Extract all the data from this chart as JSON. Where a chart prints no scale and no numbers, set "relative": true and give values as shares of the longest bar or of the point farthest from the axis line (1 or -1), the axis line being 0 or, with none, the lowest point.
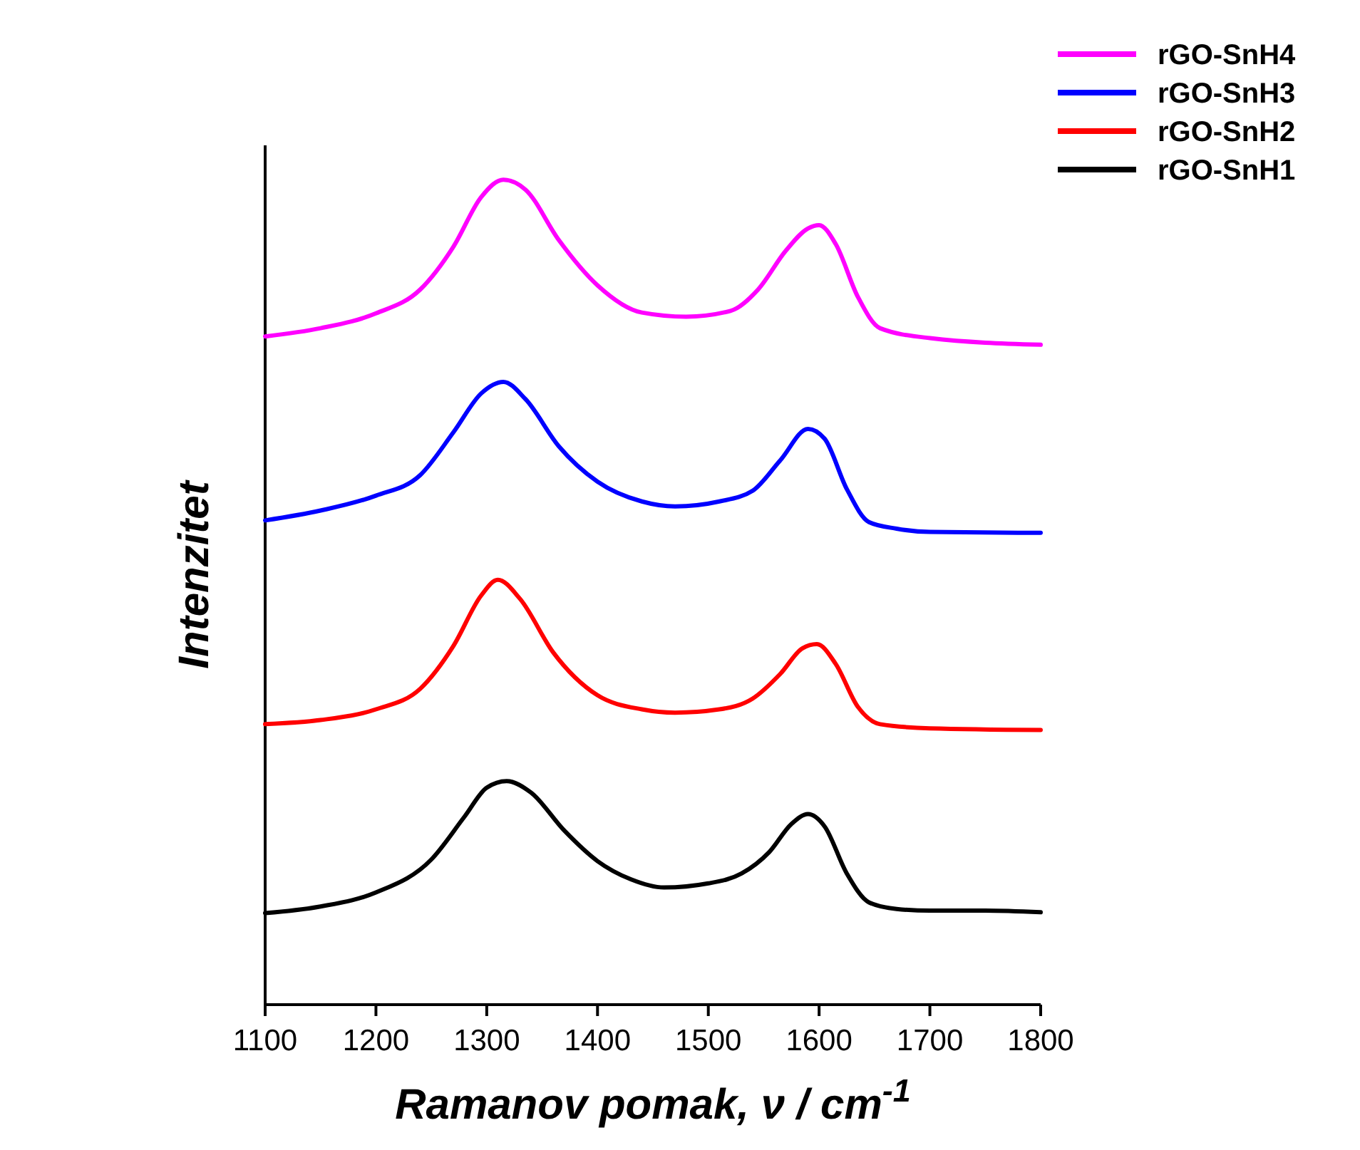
{
  "chart_data": {
    "type": "line",
    "relative": true,
    "xlabel": "Ramanov pomak, ν / cm$^{-1}$",
    "ylabel": "Intenzitet",
    "xlim": [
      1100,
      1800
    ],
    "xticks": [
      1100,
      1200,
      1300,
      1400,
      1500,
      1600,
      1700,
      1800
    ],
    "legend": "top right",
    "grid": false,
    "marker": "none",
    "line_style": "solid",
    "series": [
      {
        "name": "rGO-SnH4",
        "color": "#ff00ff",
        "x": [
          1100,
          1150,
          1200,
          1240,
          1270,
          1295,
          1315,
          1335,
          1365,
          1400,
          1440,
          1480,
          1520,
          1545,
          1570,
          1590,
          1600,
          1615,
          1635,
          1655,
          1700,
          1800
        ],
        "values": [
          0.81,
          0.82,
          0.838,
          0.867,
          0.919,
          0.979,
          1.0,
          0.988,
          0.927,
          0.872,
          0.839,
          0.834,
          0.841,
          0.867,
          0.914,
          0.941,
          0.945,
          0.922,
          0.858,
          0.82,
          0.808,
          0.8
        ]
      },
      {
        "name": "rGO-SnH3",
        "color": "#0000ff",
        "x": [
          1100,
          1150,
          1200,
          1240,
          1270,
          1295,
          1315,
          1335,
          1365,
          1400,
          1440,
          1470,
          1510,
          1540,
          1565,
          1590,
          1605,
          1625,
          1645,
          1670,
          1700,
          1800
        ],
        "values": [
          0.587,
          0.599,
          0.617,
          0.642,
          0.694,
          0.741,
          0.755,
          0.734,
          0.677,
          0.634,
          0.61,
          0.604,
          0.61,
          0.623,
          0.66,
          0.698,
          0.686,
          0.625,
          0.585,
          0.577,
          0.573,
          0.572
        ]
      },
      {
        "name": "rGO-SnH2",
        "color": "#ff0000",
        "x": [
          1100,
          1150,
          1200,
          1240,
          1270,
          1295,
          1310,
          1330,
          1360,
          1400,
          1440,
          1470,
          1510,
          1540,
          1565,
          1585,
          1598,
          1615,
          1635,
          1655,
          1700,
          1800
        ],
        "values": [
          0.34,
          0.345,
          0.358,
          0.383,
          0.435,
          0.496,
          0.515,
          0.492,
          0.427,
          0.375,
          0.358,
          0.354,
          0.358,
          0.371,
          0.401,
          0.432,
          0.437,
          0.413,
          0.361,
          0.34,
          0.335,
          0.333
        ]
      },
      {
        "name": "rGO-SnH1",
        "color": "#000000",
        "x": [
          1100,
          1150,
          1200,
          1250,
          1280,
          1300,
          1318,
          1340,
          1370,
          1400,
          1430,
          1460,
          1500,
          1530,
          1555,
          1575,
          1590,
          1605,
          1625,
          1645,
          1670,
          1700,
          1750,
          1800
        ],
        "values": [
          0.111,
          0.119,
          0.136,
          0.176,
          0.228,
          0.263,
          0.271,
          0.257,
          0.211,
          0.174,
          0.152,
          0.142,
          0.147,
          0.159,
          0.185,
          0.219,
          0.231,
          0.216,
          0.159,
          0.124,
          0.116,
          0.114,
          0.114,
          0.112
        ]
      }
    ]
  }
}
